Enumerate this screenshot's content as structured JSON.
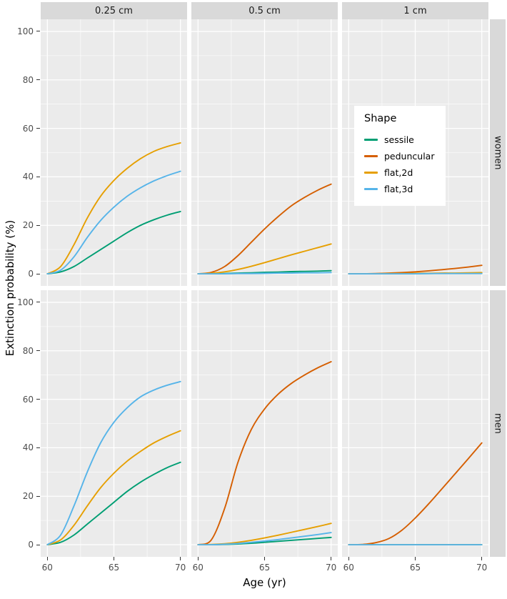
{
  "chart_data": {
    "type": "line",
    "title": "",
    "xlabel": "Age (yr)",
    "ylabel": "Extinction probability (%)",
    "x_domain": [
      59.5,
      70.5
    ],
    "y_domain": [
      -5,
      105
    ],
    "x_ticks": [
      60,
      65,
      70
    ],
    "x_minor": [
      62.5,
      67.5
    ],
    "y_ticks": [
      0,
      20,
      40,
      60,
      80,
      100
    ],
    "y_minor": [
      10,
      30,
      50,
      70,
      90
    ],
    "grid": true,
    "facet_cols": [
      "0.25 cm",
      "0.5 cm",
      "1 cm"
    ],
    "facet_rows": [
      "women",
      "men"
    ],
    "series_colors": {
      "sessile": "#009E73",
      "peduncular": "#D55E00",
      "flat,2d": "#E69F00",
      "flat,3d": "#56B4E9"
    },
    "legend": {
      "title": "Shape",
      "items": [
        "sessile",
        "peduncular",
        "flat,2d",
        "flat,3d"
      ]
    },
    "x": [
      60,
      61,
      62,
      63,
      64,
      65,
      66,
      67,
      68,
      69,
      70
    ],
    "panels": [
      {
        "row": 0,
        "col": 0,
        "row_label": "women",
        "col_label": "0.25 cm",
        "series": [
          {
            "name": "sessile",
            "values": [
              0,
              0.8,
              3,
              6.5,
              10,
              13.5,
              17,
              20,
              22.3,
              24.2,
              25.7
            ]
          },
          {
            "name": "flat,2d",
            "values": [
              0,
              3,
              12,
              23,
              32,
              38.5,
              43.5,
              47.5,
              50.5,
              52.5,
              54
            ]
          },
          {
            "name": "flat,3d",
            "values": [
              0,
              1.5,
              7,
              15,
              22,
              27.5,
              32,
              35.5,
              38.3,
              40.5,
              42.3
            ]
          }
        ]
      },
      {
        "row": 0,
        "col": 1,
        "row_label": "women",
        "col_label": "0.5 cm",
        "series": [
          {
            "name": "sessile",
            "values": [
              0,
              0,
              0.1,
              0.3,
              0.4,
              0.6,
              0.7,
              0.9,
              1,
              1.1,
              1.3
            ]
          },
          {
            "name": "peduncular",
            "values": [
              0,
              0.6,
              3,
              7.5,
              13,
              18.5,
              23.5,
              28,
              31.5,
              34.5,
              37
            ]
          },
          {
            "name": "flat,2d",
            "values": [
              0,
              0.2,
              0.8,
              1.8,
              3.1,
              4.6,
              6.2,
              7.8,
              9.3,
              10.8,
              12.3
            ]
          },
          {
            "name": "flat,3d",
            "values": [
              0,
              0,
              0,
              0.1,
              0.1,
              0.2,
              0.3,
              0.3,
              0.4,
              0.4,
              0.5
            ]
          }
        ]
      },
      {
        "row": 0,
        "col": 2,
        "row_label": "women",
        "col_label": "1 cm",
        "series": [
          {
            "name": "sessile",
            "values": [
              0,
              0,
              0,
              0,
              0.1,
              0.1,
              0.1,
              0.2,
              0.2,
              0.2,
              0.3
            ]
          },
          {
            "name": "peduncular",
            "values": [
              0,
              0,
              0.1,
              0.3,
              0.5,
              0.8,
              1.2,
              1.7,
              2.2,
              2.8,
              3.5
            ]
          },
          {
            "name": "flat,2d",
            "values": [
              0,
              0,
              0,
              0.1,
              0.1,
              0.2,
              0.2,
              0.3,
              0.3,
              0.4,
              0.5
            ]
          },
          {
            "name": "flat,3d",
            "values": [
              0,
              0,
              0,
              0,
              0,
              0,
              0.1,
              0.1,
              0.1,
              0.1,
              0.1
            ]
          }
        ]
      },
      {
        "row": 1,
        "col": 0,
        "row_label": "men",
        "col_label": "0.25 cm",
        "series": [
          {
            "name": "sessile",
            "values": [
              0,
              1,
              4,
              8.5,
              13,
              17.5,
              22,
              25.8,
              29,
              31.8,
              34
            ]
          },
          {
            "name": "flat,2d",
            "values": [
              0,
              2,
              8,
              16,
              23.5,
              29.5,
              34.5,
              38.5,
              42,
              44.7,
              47
            ]
          },
          {
            "name": "flat,3d",
            "values": [
              0,
              4,
              16,
              30,
              42,
              50.5,
              56.5,
              61,
              63.8,
              65.8,
              67.3
            ]
          }
        ]
      },
      {
        "row": 1,
        "col": 1,
        "row_label": "men",
        "col_label": "0.5 cm",
        "series": [
          {
            "name": "sessile",
            "values": [
              0,
              0,
              0.1,
              0.3,
              0.6,
              1,
              1.4,
              1.8,
              2.2,
              2.6,
              3
            ]
          },
          {
            "name": "peduncular",
            "values": [
              0,
              2,
              15,
              34,
              47.5,
              56,
              62,
              66.5,
              70,
              73,
              75.5
            ]
          },
          {
            "name": "flat,2d",
            "values": [
              0,
              0.1,
              0.4,
              1,
              1.8,
              2.8,
              3.9,
              5.1,
              6.3,
              7.5,
              8.8
            ]
          },
          {
            "name": "flat,3d",
            "values": [
              0,
              0,
              0.2,
              0.5,
              1,
              1.5,
              2.1,
              2.8,
              3.5,
              4.2,
              5
            ]
          }
        ]
      },
      {
        "row": 1,
        "col": 2,
        "row_label": "men",
        "col_label": "1 cm",
        "series": [
          {
            "name": "sessile",
            "values": [
              0,
              0,
              0,
              0,
              0,
              0,
              0,
              0,
              0,
              0,
              0
            ]
          },
          {
            "name": "peduncular",
            "values": [
              0,
              0.1,
              0.8,
              2.5,
              6,
              11,
              16.8,
              23,
              29.3,
              35.6,
              42
            ]
          },
          {
            "name": "flat,2d",
            "values": [
              0,
              0,
              0,
              0,
              0,
              0,
              0,
              0,
              0,
              0,
              0
            ]
          },
          {
            "name": "flat,3d",
            "values": [
              0,
              0,
              0,
              0,
              0,
              0,
              0,
              0,
              0,
              0,
              0
            ]
          }
        ]
      }
    ]
  }
}
